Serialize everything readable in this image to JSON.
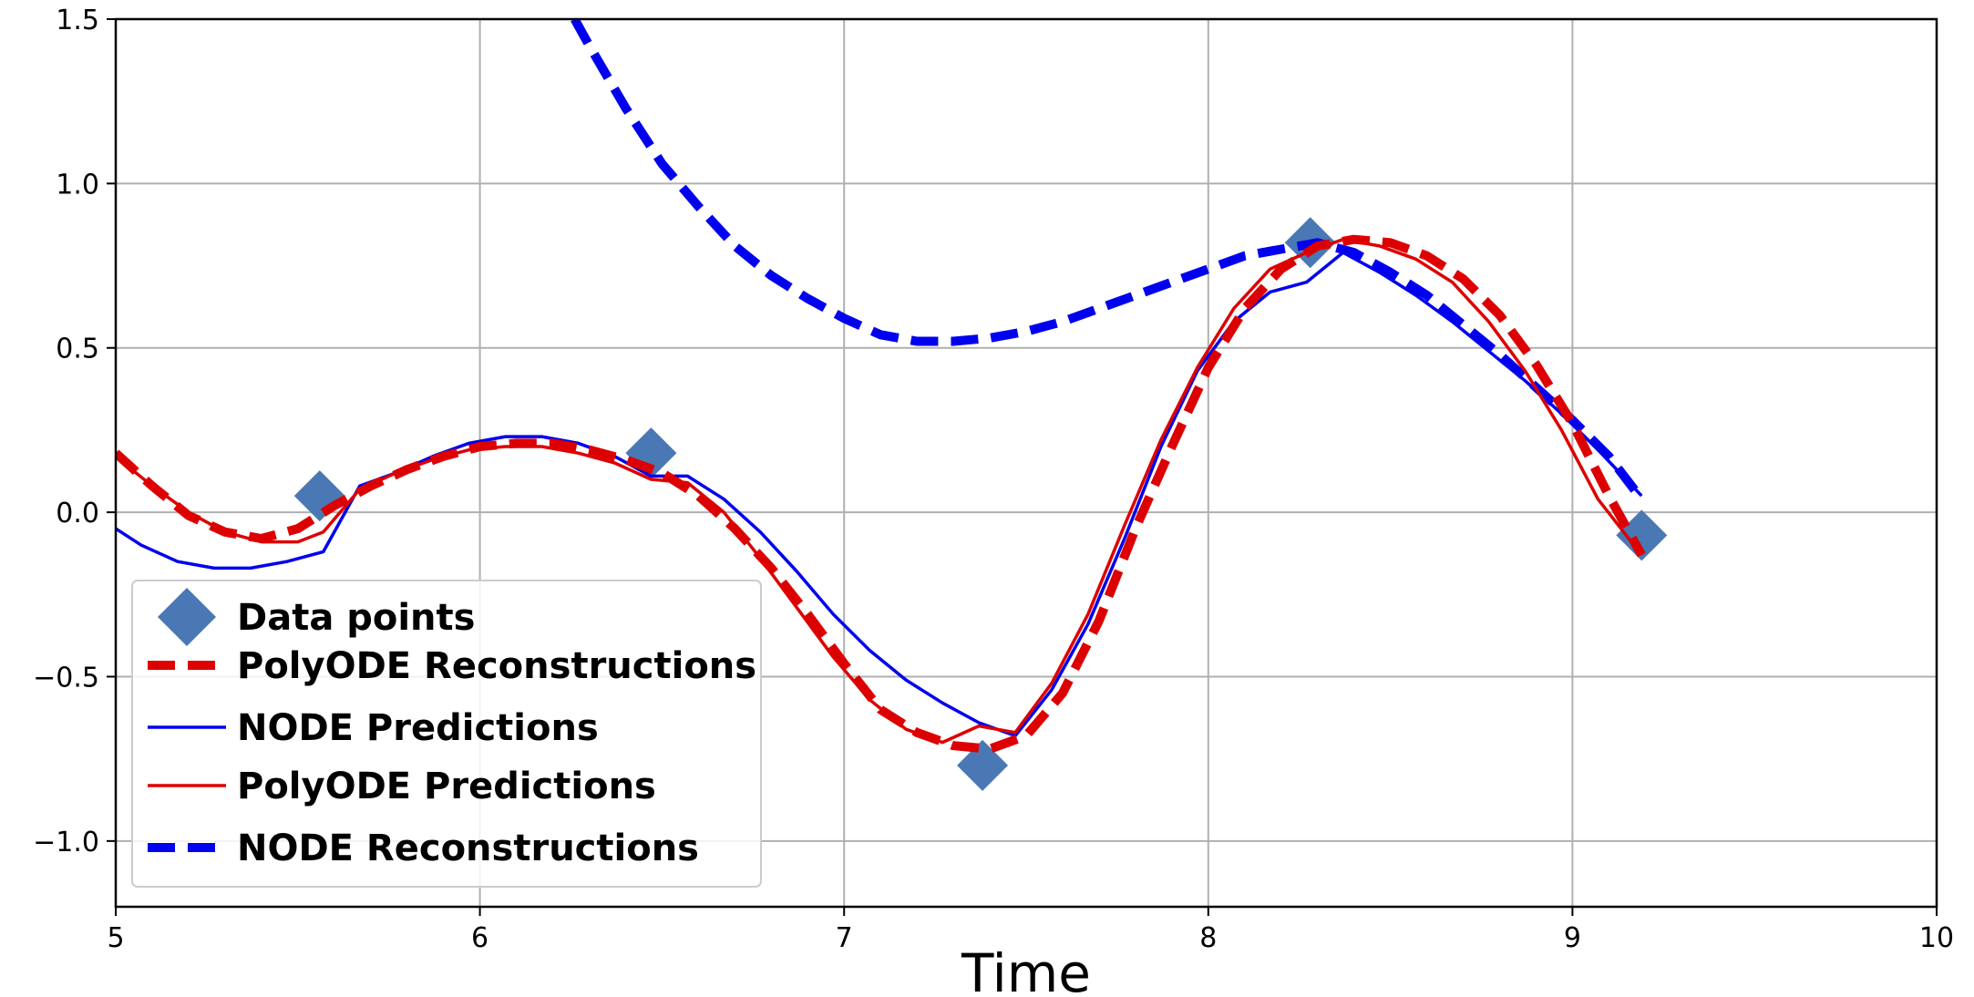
{
  "chart_data": {
    "type": "line",
    "title": "",
    "xlabel": "Time",
    "ylabel": "",
    "xlim": [
      5,
      10
    ],
    "ylim": [
      -1.2,
      1.5
    ],
    "xticks": [
      5,
      6,
      7,
      8,
      9,
      10
    ],
    "xtick_labels": [
      "5",
      "6",
      "7",
      "8",
      "9",
      "10"
    ],
    "yticks": [
      1.5,
      1.0,
      0.5,
      0.0,
      -0.5,
      -1.0
    ],
    "ytick_labels": [
      "1.5",
      "1.0",
      "0.5",
      "0.0",
      "−0.5",
      "−1.0"
    ],
    "grid": true,
    "legend_position": "lower-left",
    "series": [
      {
        "name": "Data points",
        "kind": "scatter",
        "marker": "diamond",
        "color": "#4a78b4",
        "x": [
          5.56,
          6.47,
          7.38,
          8.28,
          9.19
        ],
        "y": [
          0.05,
          0.18,
          -0.77,
          0.82,
          -0.07
        ]
      },
      {
        "name": "PolyODE Reconstructions",
        "kind": "line",
        "style": "dashed",
        "color": "#dd0000",
        "x": [
          5.0,
          5.1,
          5.2,
          5.3,
          5.4,
          5.5,
          5.6,
          5.7,
          5.8,
          5.9,
          6.0,
          6.1,
          6.2,
          6.3,
          6.4,
          6.5,
          6.6,
          6.7,
          6.8,
          6.9,
          7.0,
          7.1,
          7.2,
          7.3,
          7.4,
          7.5,
          7.6,
          7.7,
          7.8,
          7.9,
          8.0,
          8.1,
          8.2,
          8.3,
          8.4,
          8.5,
          8.6,
          8.7,
          8.8,
          8.9,
          9.0,
          9.1,
          9.19
        ],
        "y": [
          0.18,
          0.08,
          -0.01,
          -0.06,
          -0.08,
          -0.05,
          0.02,
          0.08,
          0.13,
          0.17,
          0.2,
          0.21,
          0.21,
          0.19,
          0.16,
          0.12,
          0.05,
          -0.05,
          -0.17,
          -0.31,
          -0.46,
          -0.6,
          -0.67,
          -0.71,
          -0.72,
          -0.68,
          -0.55,
          -0.33,
          -0.05,
          0.2,
          0.44,
          0.62,
          0.74,
          0.81,
          0.83,
          0.82,
          0.78,
          0.71,
          0.6,
          0.45,
          0.27,
          0.05,
          -0.13
        ]
      },
      {
        "name": "NODE Predictions",
        "kind": "line",
        "style": "solid",
        "color": "#0000ee",
        "x": [
          5.0,
          5.07,
          5.17,
          5.27,
          5.37,
          5.47,
          5.57,
          5.67,
          5.77,
          5.87,
          5.97,
          6.07,
          6.17,
          6.27,
          6.37,
          6.47,
          6.57,
          6.67,
          6.77,
          6.87,
          6.97,
          7.07,
          7.17,
          7.27,
          7.37,
          7.47,
          7.57,
          7.67,
          7.77,
          7.87,
          7.97,
          8.07,
          8.17,
          8.27,
          8.37,
          8.47,
          8.57,
          8.67,
          8.77,
          8.87,
          8.97,
          9.07,
          9.19
        ],
        "y": [
          -0.05,
          -0.1,
          -0.15,
          -0.17,
          -0.17,
          -0.15,
          -0.12,
          0.08,
          0.12,
          0.17,
          0.21,
          0.23,
          0.23,
          0.21,
          0.17,
          0.11,
          0.11,
          0.04,
          -0.06,
          -0.18,
          -0.31,
          -0.42,
          -0.51,
          -0.58,
          -0.64,
          -0.68,
          -0.54,
          -0.34,
          -0.08,
          0.2,
          0.43,
          0.58,
          0.67,
          0.7,
          0.79,
          0.73,
          0.66,
          0.58,
          0.49,
          0.4,
          0.3,
          0.19,
          0.05
        ]
      },
      {
        "name": "PolyODE Predictions",
        "kind": "line",
        "style": "solid",
        "color": "#dd0000",
        "x": [
          5.0,
          5.1,
          5.2,
          5.3,
          5.4,
          5.5,
          5.57,
          5.67,
          5.77,
          5.87,
          5.97,
          6.07,
          6.17,
          6.27,
          6.37,
          6.47,
          6.57,
          6.67,
          6.77,
          6.87,
          6.97,
          7.07,
          7.17,
          7.27,
          7.37,
          7.47,
          7.57,
          7.67,
          7.77,
          7.87,
          7.97,
          8.07,
          8.17,
          8.27,
          8.37,
          8.47,
          8.57,
          8.67,
          8.77,
          8.87,
          8.97,
          9.07,
          9.19
        ],
        "y": [
          0.17,
          0.08,
          0.0,
          -0.06,
          -0.09,
          -0.09,
          -0.06,
          0.07,
          0.12,
          0.16,
          0.19,
          0.2,
          0.2,
          0.18,
          0.15,
          0.1,
          0.09,
          0.0,
          -0.14,
          -0.29,
          -0.44,
          -0.57,
          -0.66,
          -0.7,
          -0.65,
          -0.67,
          -0.52,
          -0.31,
          -0.04,
          0.22,
          0.44,
          0.62,
          0.74,
          0.79,
          0.83,
          0.81,
          0.77,
          0.7,
          0.58,
          0.43,
          0.25,
          0.04,
          -0.13
        ]
      },
      {
        "name": "NODE Reconstructions",
        "kind": "line",
        "style": "dashed",
        "color": "#0000ee",
        "x": [
          6.26,
          6.3,
          6.4,
          6.5,
          6.6,
          6.7,
          6.8,
          6.9,
          7.0,
          7.1,
          7.2,
          7.3,
          7.4,
          7.5,
          7.6,
          7.7,
          7.8,
          7.9,
          8.0,
          8.1,
          8.2,
          8.3,
          8.4,
          8.5,
          8.6,
          8.7,
          8.8,
          8.9,
          9.0,
          9.1,
          9.19
        ],
        "y": [
          1.5,
          1.42,
          1.23,
          1.06,
          0.93,
          0.81,
          0.72,
          0.65,
          0.59,
          0.54,
          0.52,
          0.52,
          0.53,
          0.55,
          0.58,
          0.62,
          0.66,
          0.7,
          0.74,
          0.78,
          0.8,
          0.82,
          0.79,
          0.73,
          0.66,
          0.57,
          0.48,
          0.38,
          0.28,
          0.17,
          0.04
        ]
      }
    ]
  }
}
